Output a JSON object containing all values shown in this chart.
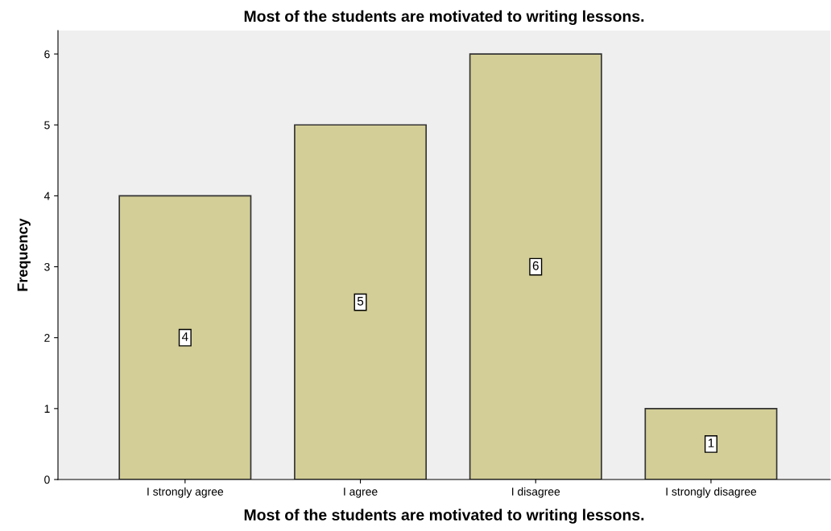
{
  "chart_data": {
    "type": "bar",
    "title": "Most of the students are motivated to writing lessons.",
    "xlabel": "Most of the students are motivated to writing lessons.",
    "ylabel": "Frequency",
    "categories": [
      "I strongly agree",
      "I agree",
      "I disagree",
      "I strongly disagree"
    ],
    "values": [
      4,
      5,
      6,
      1
    ],
    "color": "#d3ce97",
    "ylim": [
      0,
      6.33
    ],
    "yticks": [
      0,
      1,
      2,
      3,
      4,
      5,
      6
    ],
    "grid": false,
    "data_labels": true
  }
}
